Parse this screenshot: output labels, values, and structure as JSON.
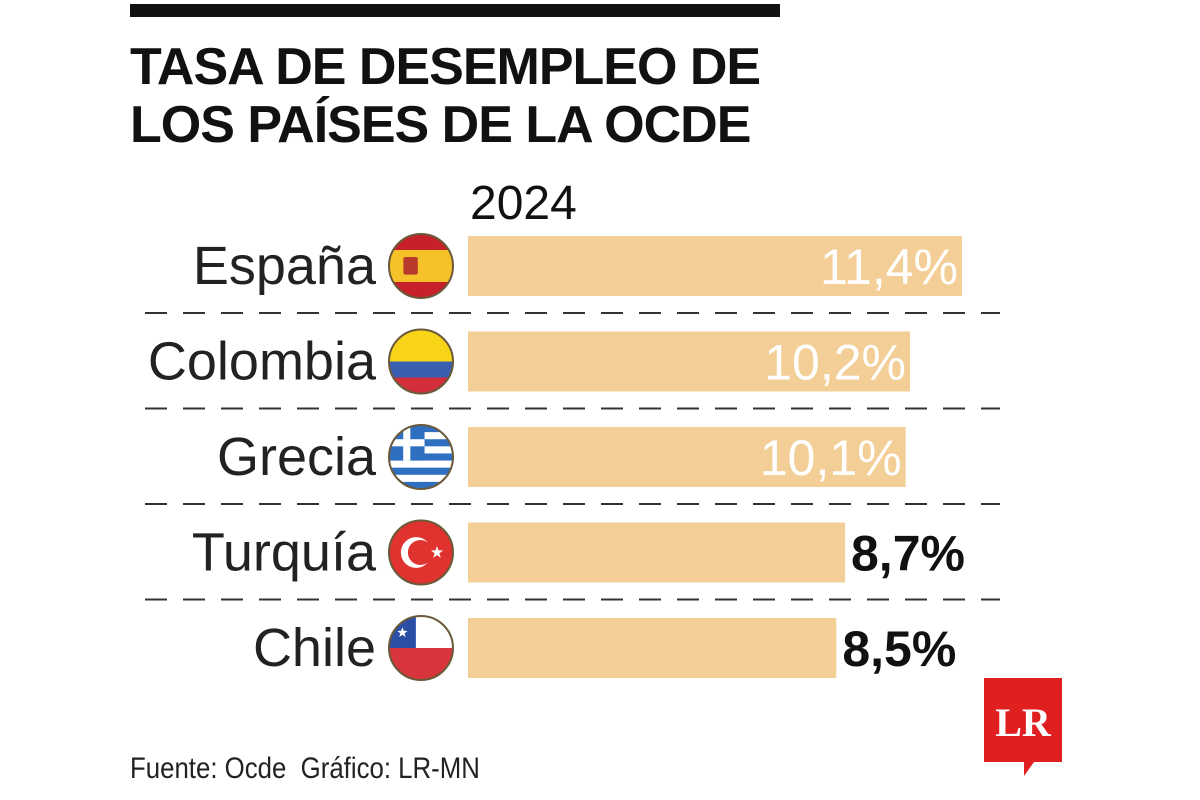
{
  "chart_data": {
    "type": "bar",
    "orientation": "horizontal",
    "title_lines": [
      "TASA DE DESEMPLEO DE",
      "LOS PAÍSES DE LA OCDE"
    ],
    "subtitle": "2024",
    "categories": [
      "España",
      "Colombia",
      "Grecia",
      "Turquía",
      "Chile"
    ],
    "values": [
      11.4,
      10.2,
      10.1,
      8.7,
      8.5
    ],
    "value_labels": [
      "11,4%",
      "10,2%",
      "10,1%",
      "8,7%",
      "8,5%"
    ],
    "flags": [
      "spain-flag-icon",
      "colombia-flag-icon",
      "greece-flag-icon",
      "turkey-flag-icon",
      "chile-flag-icon"
    ],
    "xlim": [
      0,
      11.4
    ],
    "grid": false,
    "colors": {
      "bar": "#f3cf97",
      "label_inside": "#ffffff",
      "label_outside": "#111111",
      "separator": "#333333"
    }
  },
  "footer": {
    "source": "Fuente: Ocde  Gráfico: LR-MN"
  },
  "logo": {
    "text": "LR",
    "color": "#e02020"
  }
}
